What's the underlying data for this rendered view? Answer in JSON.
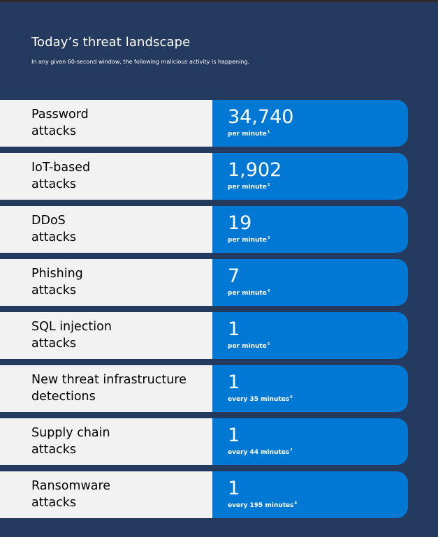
{
  "header": {
    "title": "Today’s threat landscape",
    "subtitle": "In any given 60-second window, the following malicious activity is happening."
  },
  "colors": {
    "background": "#243a5e",
    "label_bg": "#f2f2f2",
    "value_bg": "#0078d4"
  },
  "rows": [
    {
      "line1": "Password",
      "line2": "attacks",
      "value": "34,740",
      "rate": "per minute",
      "note": "1"
    },
    {
      "line1": "IoT-based",
      "line2": "attacks",
      "value": "1,902",
      "rate": "per minute",
      "note": "2"
    },
    {
      "line1": "DDoS",
      "line2": "attacks",
      "value": "19",
      "rate": "per minute",
      "note": "3"
    },
    {
      "line1": "Phishing",
      "line2": "attacks",
      "value": "7",
      "rate": "per minute",
      "note": "4"
    },
    {
      "line1": "SQL injection",
      "line2": "attacks",
      "value": "1",
      "rate": "per minute",
      "note": "5"
    },
    {
      "line1": "New threat infrastructure",
      "line2": "detections",
      "value": "1",
      "rate": "every 35 minutes",
      "note": "6"
    },
    {
      "line1": "Supply chain",
      "line2": "attacks",
      "value": "1",
      "rate": "every 44 minutes",
      "note": "7"
    },
    {
      "line1": "Ransomware",
      "line2": "attacks",
      "value": "1",
      "rate": "every 195 minutes",
      "note": "8"
    }
  ]
}
